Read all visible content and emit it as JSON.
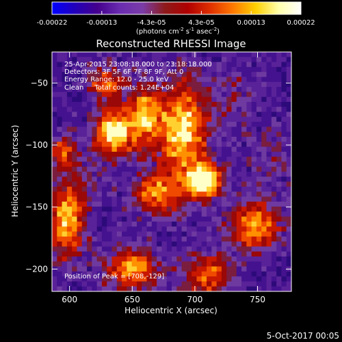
{
  "chart_data": {
    "type": "heatmap",
    "title": "Reconstructed RHESSI Image",
    "xlabel": "Heliocentric X (arcsec)",
    "ylabel": "Heliocentric Y (arcsec)",
    "xlim": [
      586,
      777
    ],
    "ylim": [
      -218,
      -25
    ],
    "xticks": [
      600,
      650,
      700,
      750
    ],
    "yticks": [
      -50,
      -100,
      -150,
      -200
    ],
    "grid": false,
    "colorbar": {
      "position": "top",
      "label_parts": [
        "(photons cm",
        "-2",
        " s",
        "-1",
        " asec",
        "-2",
        ")"
      ],
      "tick_labels": [
        "-0.00022",
        "-0.00013",
        "-4.3e-05",
        "4.3e-05",
        "0.00013",
        "0.00022"
      ],
      "range": [
        -0.00022,
        0.00022
      ],
      "colors": [
        "#0000ff",
        "#2200bb",
        "#44008d",
        "#6a2cb0",
        "#7a3ca8",
        "#8e1a1a",
        "#b00000",
        "#e03000",
        "#ff7a00",
        "#ffd000",
        "#ffffaa",
        "#ffffff"
      ]
    },
    "annotations": [
      "25-Apr-2015 23:08:18.000 to 23:18:18.000",
      "Detectors: 3F 5F 6F 7F 8F 9F, Att 0",
      "Energy Range: 12.0 - 25.0 keV",
      "Clean     Total counts: 1.24E+04",
      "Position of Peak = [708,-129]"
    ],
    "peak": {
      "x": 708,
      "y": -129
    },
    "grid_size": [
      48,
      48
    ],
    "bright_sources": [
      {
        "x": 635,
        "y": -90,
        "sx": 10,
        "sy": 13,
        "a": 1.0
      },
      {
        "x": 660,
        "y": -78,
        "sx": 10,
        "sy": 17,
        "a": 0.75
      },
      {
        "x": 690,
        "y": -90,
        "sx": 13,
        "sy": 28,
        "a": 0.85
      },
      {
        "x": 708,
        "y": -129,
        "sx": 9,
        "sy": 10,
        "a": 1.0
      },
      {
        "x": 670,
        "y": -140,
        "sx": 14,
        "sy": 11,
        "a": 0.65
      },
      {
        "x": 650,
        "y": -200,
        "sx": 14,
        "sy": 12,
        "a": 0.75
      },
      {
        "x": 710,
        "y": -205,
        "sx": 14,
        "sy": 12,
        "a": 0.6
      },
      {
        "x": 598,
        "y": -160,
        "sx": 10,
        "sy": 22,
        "a": 0.8
      },
      {
        "x": 595,
        "y": -105,
        "sx": 8,
        "sy": 9,
        "a": 0.55
      },
      {
        "x": 748,
        "y": -165,
        "sx": 14,
        "sy": 14,
        "a": 0.75
      },
      {
        "x": 630,
        "y": -50,
        "sx": 10,
        "sy": 10,
        "a": 0.55
      }
    ],
    "dim_sources": [
      {
        "x": 730,
        "y": -60,
        "sx": 18,
        "sy": 20,
        "a": 0.7
      },
      {
        "x": 760,
        "y": -110,
        "sx": 14,
        "sy": 18,
        "a": 0.6
      },
      {
        "x": 615,
        "y": -125,
        "sx": 10,
        "sy": 10,
        "a": 0.5
      }
    ]
  },
  "footer": {
    "date": "5-Oct-2017 00:05"
  }
}
